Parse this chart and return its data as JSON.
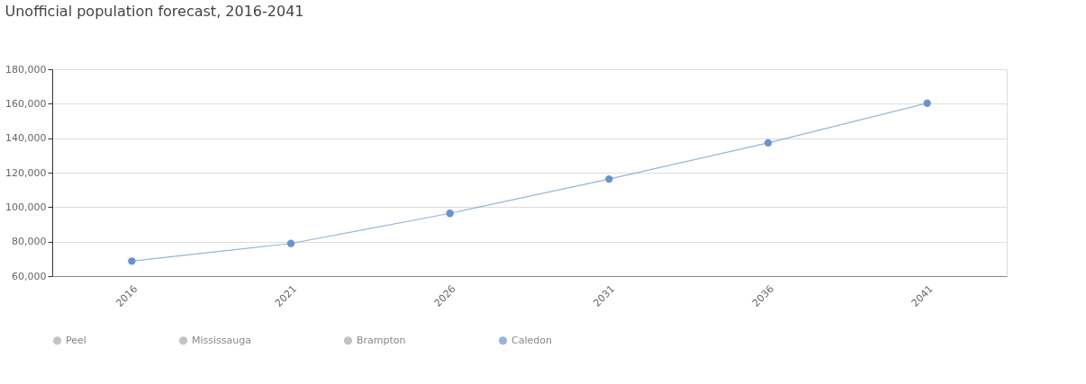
{
  "chart_data": {
    "type": "line",
    "title": "Unofficial population forecast, 2016-2041",
    "categories": [
      "2016",
      "2021",
      "2026",
      "2031",
      "2036",
      "2041"
    ],
    "series": [
      {
        "name": "Peel",
        "color": "#a5aeab",
        "values": [
          null,
          null,
          null,
          null,
          null,
          null
        ]
      },
      {
        "name": "Mississauga",
        "color": "#a5aeab",
        "values": [
          null,
          null,
          null,
          null,
          null,
          null
        ]
      },
      {
        "name": "Brampton",
        "color": "#a5aeab",
        "values": [
          null,
          null,
          null,
          null,
          null,
          null
        ]
      },
      {
        "name": "Caledon",
        "color": "#6a93d0",
        "values": [
          68700,
          78900,
          96400,
          116300,
          137300,
          160300
        ]
      }
    ],
    "ylim": [
      60000,
      180000
    ],
    "yticks": [
      {
        "value": 60000,
        "label": "60,000"
      },
      {
        "value": 80000,
        "label": "80,000"
      },
      {
        "value": 100000,
        "label": "100,000"
      },
      {
        "value": 120000,
        "label": "120,000"
      },
      {
        "value": 140000,
        "label": "140,000"
      },
      {
        "value": 160000,
        "label": "160,000"
      },
      {
        "value": 180000,
        "label": "180,000"
      }
    ],
    "grid": "y",
    "legend": "bottom",
    "marker": "circle",
    "line_style": "solid"
  }
}
